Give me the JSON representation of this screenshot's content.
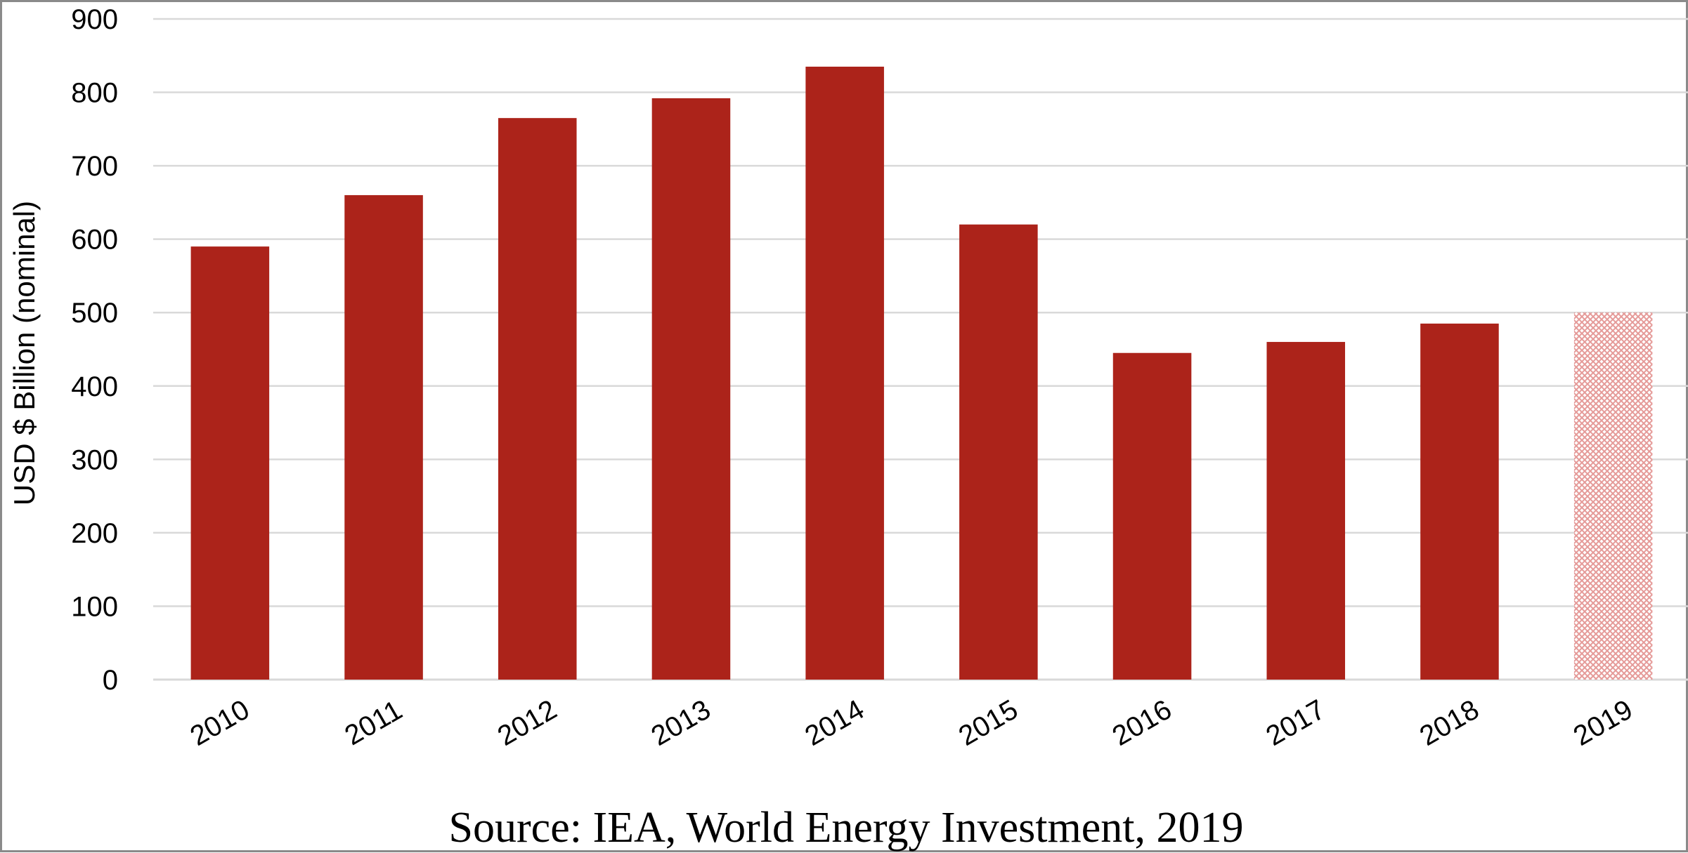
{
  "chart_data": {
    "type": "bar",
    "categories": [
      "2010",
      "2011",
      "2012",
      "2013",
      "2014",
      "2015",
      "2016",
      "2017",
      "2018",
      "2019"
    ],
    "values": [
      590,
      660,
      765,
      792,
      835,
      620,
      445,
      460,
      485,
      500
    ],
    "estimated_categories": [
      "2019"
    ],
    "title": "",
    "xlabel": "",
    "ylabel": "USD $ Billion (nominal)",
    "ylim": [
      0,
      900
    ],
    "yticks": [
      0,
      100,
      200,
      300,
      400,
      500,
      600,
      700,
      800,
      900
    ],
    "grid": true,
    "legend": "none",
    "colors": {
      "bar": "#AC231A",
      "estimate_pattern": "#E59A98",
      "grid": "#D9D9D9"
    }
  },
  "source_note": "Source: IEA, World Energy Investment, 2019"
}
